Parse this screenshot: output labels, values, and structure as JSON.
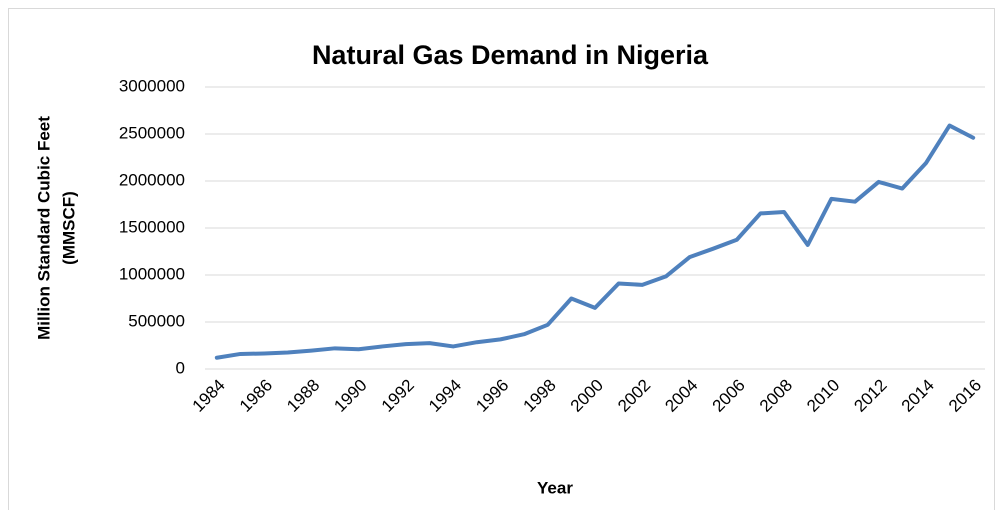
{
  "chart_data": {
    "type": "line",
    "title": "Natural Gas Demand in Nigeria",
    "y_label": [
      "Million Standard Cubic Feet",
      "(MMSCF)"
    ],
    "x_label": "Year",
    "categories": [
      "1984",
      null,
      "1986",
      null,
      "1988",
      null,
      "1990",
      null,
      "1992",
      null,
      "1994",
      null,
      "1996",
      null,
      "1998",
      null,
      "2000",
      null,
      "2002",
      null,
      "2004",
      null,
      "2006",
      null,
      "2008",
      null,
      "2010",
      null,
      "2012",
      null,
      "2014",
      null,
      "2016"
    ],
    "series": [
      {
        "color": "#4f81bd",
        "values": [
          120000,
          160000,
          165000,
          175000,
          195000,
          220000,
          210000,
          240000,
          265000,
          275000,
          240000,
          285000,
          315000,
          370000,
          470000,
          750000,
          650000,
          910000,
          895000,
          985000,
          1190000,
          1280000,
          1375000,
          1655000,
          1670000,
          1320000,
          1810000,
          1780000,
          1990000,
          1920000,
          2190000,
          2590000,
          2460000
        ]
      }
    ],
    "ylim": [
      0,
      3000000
    ],
    "yticks": [
      0,
      500000,
      1000000,
      1500000,
      2000000,
      2500000,
      3000000
    ],
    "grid": true
  }
}
